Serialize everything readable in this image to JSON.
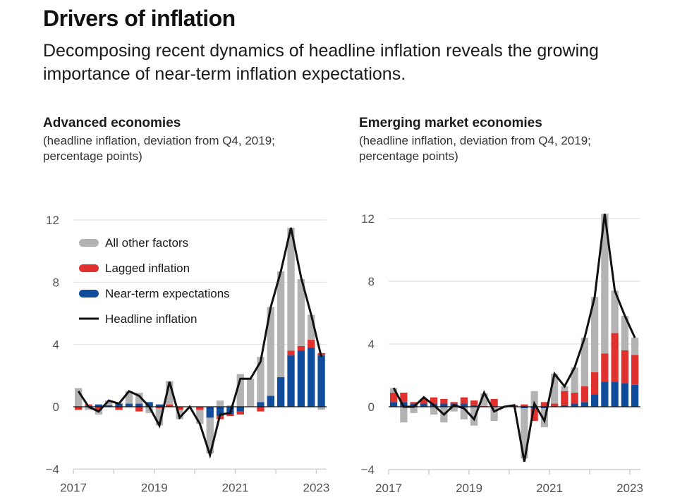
{
  "header": {
    "title": "Drivers of inflation",
    "subtitle": "Decomposing recent dynamics of headline inflation reveals the growing importance of near-term inflation expectations."
  },
  "colors": {
    "other": "#b3b3b3",
    "lagged": "#e0312f",
    "expectations": "#0f4d9c",
    "headline": "#111111",
    "grid": "#e2e2e2",
    "axis": "#cfcfcf"
  },
  "chart_data": [
    {
      "type": "bar",
      "stacked": true,
      "title": "Advanced economies",
      "note": "(headline inflation, deviation from Q4, 2019; percentage points)",
      "xlabel": "",
      "ylabel": "",
      "ylim": [
        -4,
        12
      ],
      "yticks": [
        12,
        8,
        4,
        0,
        -4
      ],
      "xticks": [
        "2017",
        "2019",
        "2021",
        "2023"
      ],
      "grid": true,
      "legend_position": "top-left",
      "categories": [
        "2017Q1",
        "2017Q2",
        "2017Q3",
        "2017Q4",
        "2018Q1",
        "2018Q2",
        "2018Q3",
        "2018Q4",
        "2019Q1",
        "2019Q2",
        "2019Q3",
        "2019Q4",
        "2020Q1",
        "2020Q2",
        "2020Q3",
        "2020Q4",
        "2021Q1",
        "2021Q2",
        "2021Q3",
        "2021Q4",
        "2022Q1",
        "2022Q2",
        "2022Q3",
        "2022Q4",
        "2023Q1"
      ],
      "series": [
        {
          "name": "Near-term expectations",
          "kind": "bar",
          "values": [
            0,
            0.05,
            0.15,
            0.1,
            0.2,
            0.2,
            0.2,
            0.3,
            0.15,
            0,
            0,
            0,
            0,
            -0.7,
            -0.6,
            -0.5,
            -0.3,
            0,
            0.3,
            0.7,
            1.9,
            3.3,
            3.6,
            3.8,
            3.3
          ]
        },
        {
          "name": "Lagged inflation",
          "kind": "bar",
          "values": [
            -0.2,
            0.1,
            -0.2,
            0,
            -0.2,
            0,
            -0.3,
            0,
            -0.1,
            0.15,
            -0.2,
            0,
            -0.2,
            0,
            -0.2,
            -0.1,
            -0.2,
            0,
            -0.3,
            0,
            0,
            0.3,
            0.3,
            0.5,
            0.15
          ]
        },
        {
          "name": "All other factors",
          "kind": "bar",
          "values": [
            1.2,
            -0.2,
            -0.3,
            0.3,
            0,
            0.8,
            0.7,
            -0.4,
            -1.1,
            1.5,
            -0.6,
            0,
            -0.9,
            -2.3,
            0.4,
            0.1,
            2.1,
            1.8,
            2.9,
            5.7,
            6.8,
            7.9,
            4.3,
            1.6,
            -0.2
          ]
        },
        {
          "name": "Headline inflation",
          "kind": "line",
          "values": [
            1.0,
            0.0,
            -0.3,
            0.4,
            0.2,
            1.0,
            0.7,
            0.0,
            -1.2,
            1.6,
            -0.7,
            0.0,
            -1.1,
            -3.1,
            -0.5,
            -0.4,
            1.8,
            1.8,
            2.9,
            6.4,
            8.7,
            11.5,
            8.3,
            5.9,
            3.2
          ]
        }
      ]
    },
    {
      "type": "bar",
      "stacked": true,
      "title": "Emerging market economies",
      "note": "(headline inflation, deviation from Q4, 2019; percentage points)",
      "xlabel": "",
      "ylabel": "",
      "ylim": [
        -4,
        12
      ],
      "yticks": [
        12,
        8,
        4,
        0,
        -4
      ],
      "xticks": [
        "2017",
        "2019",
        "2021",
        "2023"
      ],
      "grid": true,
      "legend_position": "none",
      "categories": [
        "2017Q1",
        "2017Q2",
        "2017Q3",
        "2017Q4",
        "2018Q1",
        "2018Q2",
        "2018Q3",
        "2018Q4",
        "2019Q1",
        "2019Q2",
        "2019Q3",
        "2019Q4",
        "2020Q1",
        "2020Q2",
        "2020Q3",
        "2020Q4",
        "2021Q1",
        "2021Q2",
        "2021Q3",
        "2021Q4",
        "2022Q1",
        "2022Q2",
        "2022Q3",
        "2022Q4",
        "2023Q1"
      ],
      "series": [
        {
          "name": "Near-term expectations",
          "kind": "bar",
          "values": [
            0.3,
            0.3,
            0.2,
            0.2,
            0.2,
            0.2,
            0.2,
            0.2,
            0.1,
            0,
            0,
            0,
            0,
            -0.1,
            -0.1,
            -0.1,
            0,
            0.1,
            0.2,
            0.3,
            0.8,
            1.6,
            1.6,
            1.5,
            1.4
          ]
        },
        {
          "name": "Lagged inflation",
          "kind": "bar",
          "values": [
            0.6,
            0.6,
            0.1,
            0.3,
            0.4,
            0.3,
            0.1,
            0.4,
            0.3,
            0.05,
            0.5,
            0,
            0.1,
            0.15,
            -0.8,
            0.3,
            0.2,
            0.9,
            0.7,
            1.0,
            1.4,
            1.8,
            3.1,
            2.1,
            1.9
          ]
        },
        {
          "name": "All other factors",
          "kind": "bar",
          "values": [
            0.3,
            -1.0,
            -0.4,
            0,
            -0.5,
            -1.0,
            -0.3,
            -0.8,
            -1.2,
            0.8,
            -0.9,
            0,
            0,
            -3.2,
            1.0,
            -1.2,
            1.9,
            0.3,
            1.6,
            3.1,
            4.8,
            8.9,
            2.7,
            2.2,
            1.1
          ]
        },
        {
          "name": "Headline inflation",
          "kind": "line",
          "values": [
            1.2,
            0.0,
            0.0,
            0.6,
            0.1,
            -0.5,
            0.1,
            -0.1,
            -0.8,
            0.9,
            -0.3,
            0.0,
            0.1,
            -3.5,
            0.2,
            -0.9,
            2.1,
            1.3,
            2.5,
            4.4,
            7.0,
            12.3,
            7.4,
            5.8,
            4.4
          ]
        }
      ]
    }
  ]
}
